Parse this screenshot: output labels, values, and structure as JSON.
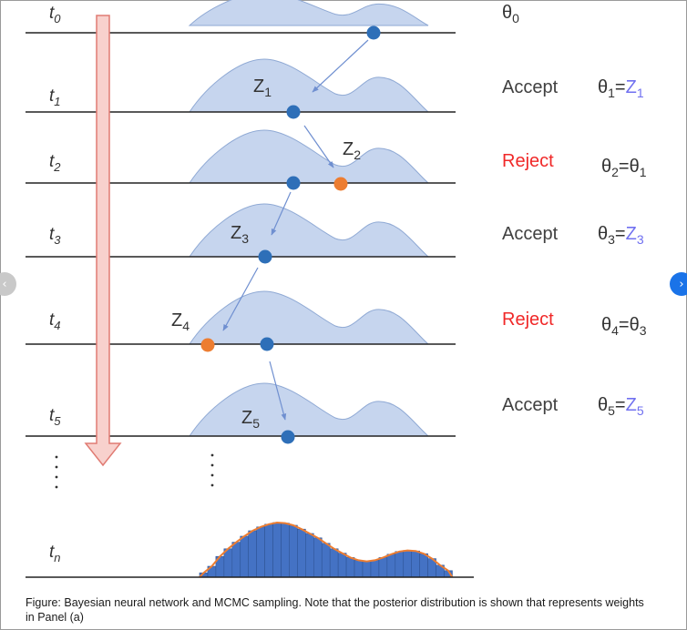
{
  "colors": {
    "distribution_fill": "#c6d5ee",
    "distribution_stroke": "#8fa9d4",
    "accepted_sample": "#2e6fb8",
    "rejected_sample": "#ed7d31",
    "proposal_arrow": "#6f8fd0",
    "time_arrow_fill": "#f8d1cd",
    "time_arrow_stroke": "#e07b73",
    "reject_text": "#f02828",
    "accept_text": "#404040",
    "z_text": "#7070f0",
    "histogram_bar": "#4472c4",
    "histogram_curve": "#ed7d31",
    "next_button": "#1a73e8"
  },
  "diagram": {
    "steps": [
      {
        "time": "t",
        "time_sub": "0",
        "proposal": "",
        "proposal_sub": "",
        "decision": "",
        "theta": "θ",
        "theta_sub": "0",
        "eq_letter": "",
        "eq_sub": "",
        "eq_type": "none"
      },
      {
        "time": "t",
        "time_sub": "1",
        "proposal": "Z",
        "proposal_sub": "1",
        "decision": "Accept",
        "theta": "θ",
        "theta_sub": "1",
        "eq_letter": "Z",
        "eq_sub": "1",
        "eq_type": "accept"
      },
      {
        "time": "t",
        "time_sub": "2",
        "proposal": "Z",
        "proposal_sub": "2",
        "decision": "Reject",
        "theta": "θ",
        "theta_sub": "2",
        "eq_letter": "θ",
        "eq_sub": "1",
        "eq_type": "reject"
      },
      {
        "time": "t",
        "time_sub": "3",
        "proposal": "Z",
        "proposal_sub": "3",
        "decision": "Accept",
        "theta": "θ",
        "theta_sub": "3",
        "eq_letter": "Z",
        "eq_sub": "3",
        "eq_type": "accept"
      },
      {
        "time": "t",
        "time_sub": "4",
        "proposal": "Z",
        "proposal_sub": "4",
        "decision": "Reject",
        "theta": "θ",
        "theta_sub": "4",
        "eq_letter": "θ",
        "eq_sub": "3",
        "eq_type": "reject"
      },
      {
        "time": "t",
        "time_sub": "5",
        "proposal": "Z",
        "proposal_sub": "5",
        "decision": "Accept",
        "theta": "θ",
        "theta_sub": "5",
        "eq_letter": "Z",
        "eq_sub": "5",
        "eq_type": "accept"
      }
    ],
    "final_time": "t",
    "final_time_sub": "n",
    "histogram_bins": [
      0.08,
      0.2,
      0.38,
      0.52,
      0.64,
      0.75,
      0.85,
      0.92,
      0.97,
      1.0,
      0.99,
      0.95,
      0.88,
      0.8,
      0.72,
      0.62,
      0.52,
      0.44,
      0.36,
      0.31,
      0.29,
      0.31,
      0.36,
      0.42,
      0.47,
      0.49,
      0.48,
      0.43,
      0.34,
      0.22,
      0.12
    ]
  },
  "caption": "Figure: Bayesian neural network and MCMC sampling. Note that the posterior distribution is shown that represents weights in Panel (a)",
  "nav": {
    "prev": "‹",
    "next": "›"
  }
}
